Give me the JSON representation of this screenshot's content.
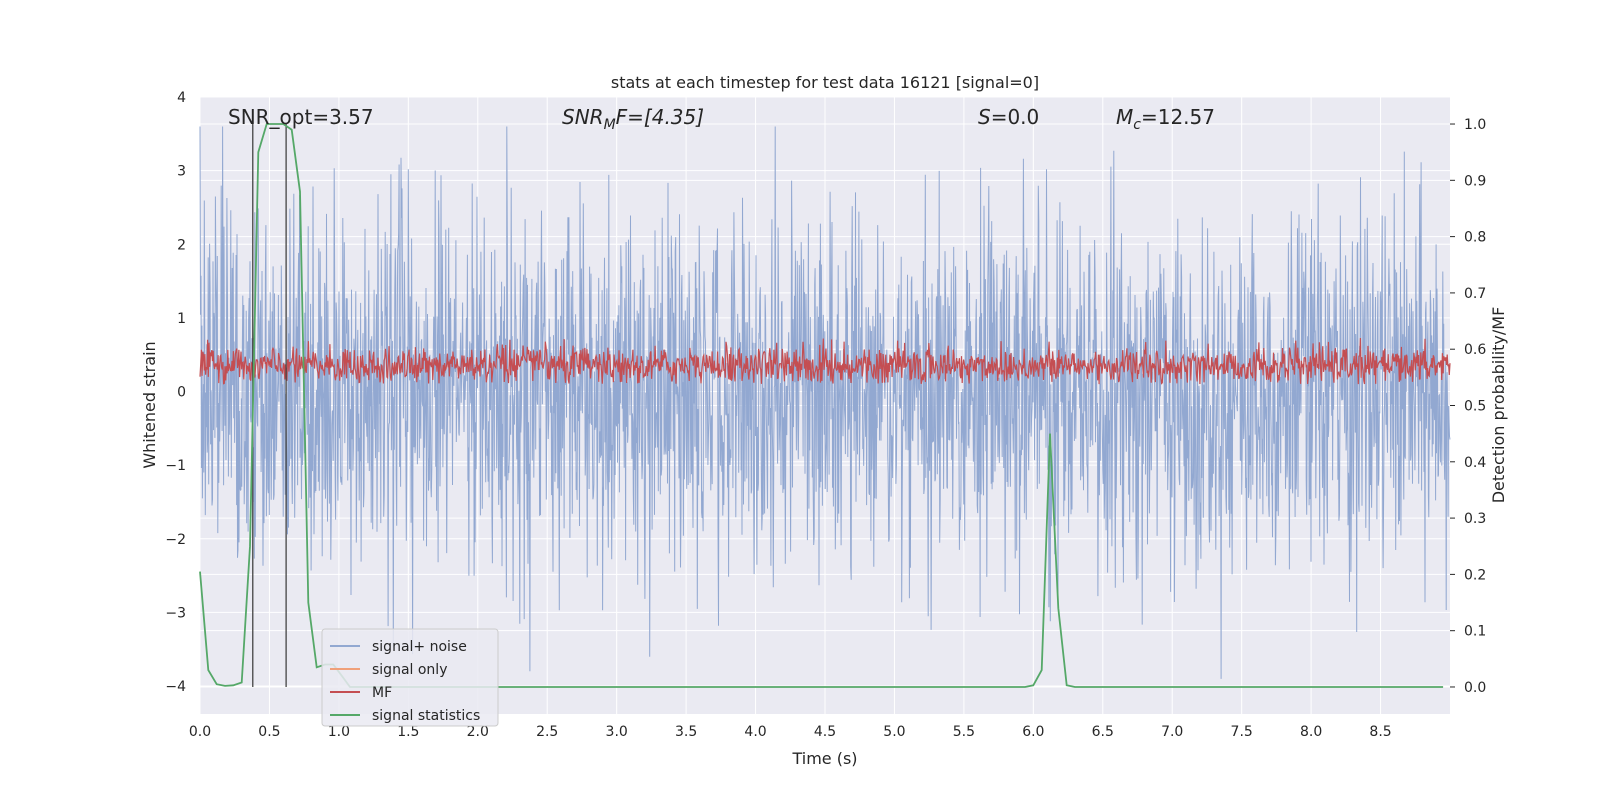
{
  "chart_data": {
    "type": "line",
    "title": "stats at each timestep for test data 16121 [signal=0]",
    "xlabel": "Time (s)",
    "ylabel_left": "Whitened strain",
    "ylabel_right": "Detection probability/MF",
    "xlim": [
      0,
      9
    ],
    "ylim_left": [
      -4.38,
      4
    ],
    "ylim_right": [
      -0.048,
      1.048
    ],
    "x_ticks": [
      "0.0",
      "0.5",
      "1.0",
      "1.5",
      "2.0",
      "2.5",
      "3.0",
      "3.5",
      "4.0",
      "4.5",
      "5.0",
      "5.5",
      "6.0",
      "6.5",
      "7.0",
      "7.5",
      "8.0",
      "8.5"
    ],
    "y_ticks_left": [
      "4",
      "3",
      "2",
      "1",
      "0",
      "−1",
      "−2",
      "−3",
      "−4"
    ],
    "y_ticks_right": [
      "1.0",
      "0.9",
      "0.8",
      "0.7",
      "0.6",
      "0.5",
      "0.4",
      "0.3",
      "0.2",
      "0.1",
      "0.0"
    ],
    "grid": true,
    "legend_position": "lower-left",
    "annotations": [
      {
        "name": "snr-opt",
        "text": "SNR_opt=3.57"
      },
      {
        "name": "snr-mf",
        "text": "SNR_MF=[4.35]"
      },
      {
        "name": "s-stat",
        "text": "S=0.0"
      },
      {
        "name": "chirp-mass",
        "text": "M_c=12.57"
      }
    ],
    "snr_opt_text": "SNR_opt=3.57",
    "snr_mf": {
      "prefix": "SNR",
      "sub": "M",
      "suffix": "F=[4.35]"
    },
    "s_stat": {
      "symbol": "S",
      "rest": "=0.0"
    },
    "chirp_mass": {
      "symbol": "M",
      "sub": "c",
      "rest": "=12.57"
    },
    "vertical_markers_x": [
      0.38,
      0.62
    ],
    "series": [
      {
        "name": "signal+ noise",
        "color": "#92a8d1",
        "axis": "left",
        "description_values": {
          "center": 0,
          "typical_amplitude": 1.2,
          "max": 3.6,
          "min": -4.0
        }
      },
      {
        "name": "signal only",
        "color": "#f0a07a",
        "axis": "left",
        "values": []
      },
      {
        "name": "MF",
        "color": "#c44e52",
        "axis": "left",
        "description_values": {
          "center": 0.35,
          "range": [
            0.1,
            0.9
          ]
        }
      },
      {
        "name": "signal statistics",
        "color": "#55a868",
        "axis": "right",
        "x": [
          0.0,
          0.06,
          0.12,
          0.18,
          0.24,
          0.3,
          0.36,
          0.42,
          0.48,
          0.54,
          0.6,
          0.66,
          0.72,
          0.78,
          0.84,
          0.9,
          0.96,
          1.02,
          1.08,
          1.2,
          1.8,
          2.4,
          3.0,
          3.6,
          4.2,
          4.8,
          5.4,
          5.94,
          6.0,
          6.06,
          6.12,
          6.18,
          6.24,
          6.3,
          7.0,
          8.0,
          8.95
        ],
        "values": [
          0.205,
          0.03,
          0.005,
          0.002,
          0.003,
          0.008,
          0.25,
          0.95,
          1.0,
          1.0,
          1.0,
          0.99,
          0.88,
          0.15,
          0.035,
          0.04,
          0.04,
          0.02,
          0.0,
          0.0,
          0.0,
          0.0,
          0.0,
          0.0,
          0.0,
          0.0,
          0.0,
          0.0,
          0.003,
          0.03,
          0.45,
          0.14,
          0.003,
          0.0,
          0.0,
          0.0,
          0.0
        ]
      }
    ]
  },
  "legend": {
    "items": [
      {
        "label": "signal+ noise",
        "color": "#92a8d1"
      },
      {
        "label": "signal only",
        "color": "#f0a07a"
      },
      {
        "label": "MF",
        "color": "#c44e52"
      },
      {
        "label": "signal statistics",
        "color": "#55a868"
      }
    ]
  },
  "style": {
    "axes_background": "#eaeaf2",
    "grid_color": "#ffffff",
    "text_color": "#262626",
    "marker_color": "#444444"
  }
}
